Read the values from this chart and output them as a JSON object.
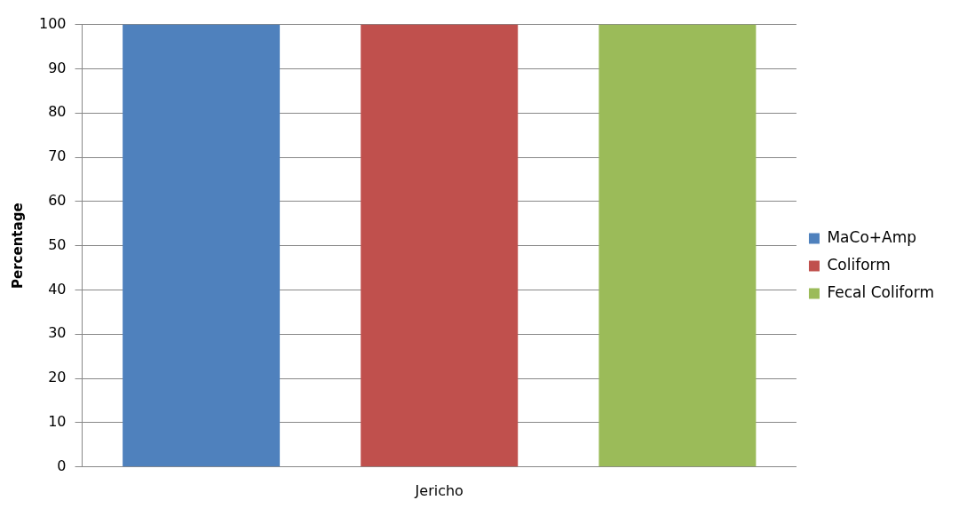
{
  "chart_data": {
    "type": "bar",
    "ylabel": "Percentage",
    "categories": [
      "Jericho"
    ],
    "series": [
      {
        "name": "MaCo+Amp",
        "color": "#4f81bd",
        "values": [
          100
        ]
      },
      {
        "name": "Coliform",
        "color": "#c0504d",
        "values": [
          100
        ]
      },
      {
        "name": "Fecal Coliform",
        "color": "#9bbb59",
        "values": [
          100
        ]
      }
    ],
    "ylim": [
      0,
      100
    ],
    "yticks": [
      0,
      10,
      20,
      30,
      40,
      50,
      60,
      70,
      80,
      90,
      100
    ],
    "grid": "y",
    "legend": "right"
  }
}
